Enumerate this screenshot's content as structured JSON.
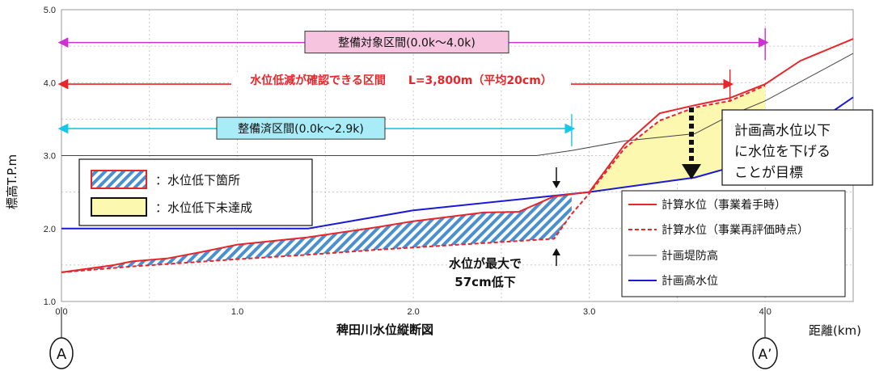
{
  "chart_data": {
    "type": "line",
    "xlabel": "距離(km)",
    "ylabel": "標高T.P.m",
    "caption": "稗田川水位縦断図",
    "xlim": [
      0,
      4.5
    ],
    "ylim": [
      1.0,
      5.0
    ],
    "xticks": [
      "0.0",
      "1.0",
      "2.0",
      "3.0",
      "4.0"
    ],
    "yticks": [
      "1.0",
      "2.0",
      "3.0",
      "4.0",
      "5.0"
    ],
    "grid": true,
    "legend_position": "bottom-right",
    "series": [
      {
        "name": "計算水位（事業着手時）",
        "color": "#e8262a",
        "style": "solid",
        "x": [
          0.0,
          0.3,
          0.4,
          0.6,
          0.8,
          1.0,
          1.4,
          1.8,
          2.0,
          2.4,
          2.6,
          2.8,
          2.9,
          3.0,
          3.2,
          3.4,
          3.6,
          3.8,
          4.0,
          4.2,
          4.5
        ],
        "y": [
          1.4,
          1.5,
          1.55,
          1.59,
          1.68,
          1.78,
          1.88,
          2.02,
          2.1,
          2.22,
          2.23,
          2.44,
          2.47,
          2.5,
          3.15,
          3.58,
          3.69,
          3.79,
          3.98,
          4.3,
          4.6
        ]
      },
      {
        "name": "計算水位（事業再評価時点）",
        "color": "#e8262a",
        "style": "dashed",
        "x": [
          0.0,
          0.4,
          1.0,
          1.4,
          1.8,
          2.0,
          2.4,
          2.6,
          2.8,
          2.9,
          3.0,
          3.2,
          3.4,
          3.6,
          3.8,
          4.0
        ],
        "y": [
          1.4,
          1.48,
          1.58,
          1.64,
          1.71,
          1.74,
          1.8,
          1.83,
          1.86,
          2.2,
          2.48,
          3.1,
          3.48,
          3.66,
          3.75,
          3.96
        ]
      },
      {
        "name": "計画堤防高",
        "color": "#444444",
        "style": "solid",
        "x": [
          0.0,
          2.7,
          2.9,
          3.2,
          3.6,
          3.8,
          4.0,
          4.5
        ],
        "y": [
          3.0,
          3.0,
          3.07,
          3.2,
          3.3,
          3.55,
          3.75,
          4.4
        ]
      },
      {
        "name": "計画高水位",
        "color": "#1a1ad6",
        "style": "solid",
        "x": [
          0.0,
          1.4,
          2.0,
          3.0,
          3.6,
          4.0,
          4.5
        ],
        "y": [
          2.0,
          2.0,
          2.25,
          2.5,
          2.7,
          2.97,
          3.8
        ]
      }
    ],
    "hatched_region": {
      "label": "：水位低下箇所",
      "x_range": [
        0.0,
        2.9
      ]
    },
    "yellow_region": {
      "label": "：水位低下未達成",
      "x_range": [
        3.0,
        4.0
      ]
    },
    "ranges": [
      {
        "label": "整備対象区間(0.0k～4.0k)",
        "x0": 0.0,
        "x1": 4.0,
        "y": 4.55,
        "color": "#cc33cc"
      },
      {
        "label": "水位低減が確認できる区間　　L=3,800m（平均20cm）",
        "x0": 0.0,
        "x1": 3.8,
        "y": 3.98,
        "color": "#e8262a"
      },
      {
        "label": "整備済区間(0.0k～2.9k)",
        "x0": 0.0,
        "x1": 2.9,
        "y": 3.37,
        "color": "#19c6e8"
      }
    ],
    "annotations": {
      "max_drop_line1": "水位が最大で",
      "max_drop_line2": "57cm低下",
      "goal_line1": "計画高水位以下",
      "goal_line2": "に水位を下げる",
      "goal_line3": "ことが目標",
      "marker_a": "A",
      "marker_a_prime": "A’"
    }
  }
}
